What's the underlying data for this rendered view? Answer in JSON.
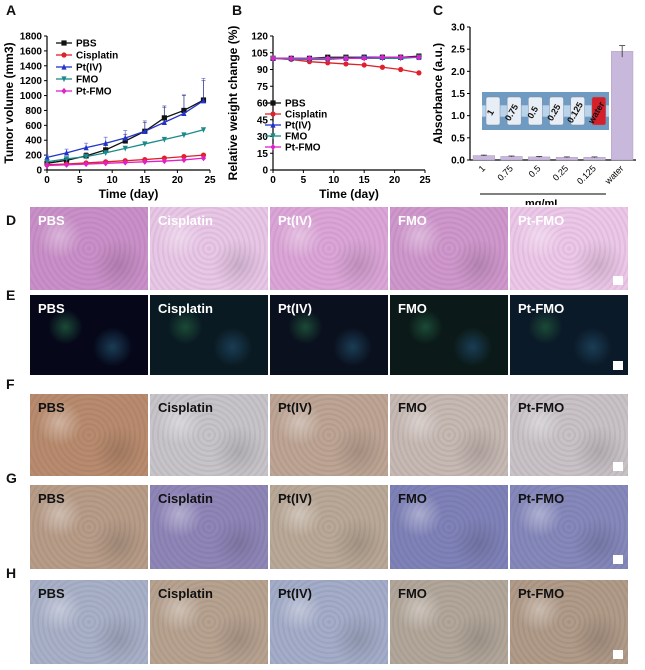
{
  "panels": [
    "A",
    "B",
    "C",
    "D",
    "E",
    "F",
    "G",
    "H"
  ],
  "groups": [
    "PBS",
    "Cisplatin",
    "Pt(IV)",
    "FMO",
    "Pt-FMO"
  ],
  "colors": {
    "PBS": "#111111",
    "Cisplatin": "#e0202a",
    "Pt(IV)": "#2233cc",
    "FMO": "#1b8a8a",
    "Pt-FMO": "#e020c8",
    "bar": "#c8b8dc"
  },
  "chart_data": [
    {
      "type": "line",
      "panel": "A",
      "xlabel": "Time (day)",
      "ylabel": "Tumor volume (mm3)",
      "xlim": [
        0,
        25
      ],
      "ylim": [
        0,
        1800
      ],
      "xticks": [
        0,
        5,
        10,
        15,
        20,
        25
      ],
      "yticks": [
        0,
        200,
        400,
        600,
        800,
        1000,
        1200,
        1400,
        1600,
        1800
      ],
      "x": [
        0,
        3,
        6,
        9,
        12,
        15,
        18,
        21,
        24
      ],
      "series": [
        {
          "name": "PBS",
          "values": [
            90,
            130,
            190,
            270,
            390,
            520,
            700,
            800,
            940
          ]
        },
        {
          "name": "Cisplatin",
          "values": [
            70,
            80,
            95,
            110,
            125,
            140,
            160,
            180,
            200
          ]
        },
        {
          "name": "Pt(IV)",
          "values": [
            170,
            230,
            300,
            360,
            430,
            520,
            640,
            760,
            930
          ]
        },
        {
          "name": "FMO",
          "values": [
            110,
            150,
            180,
            230,
            290,
            350,
            410,
            470,
            540
          ]
        },
        {
          "name": "Pt-FMO",
          "values": [
            60,
            70,
            80,
            90,
            100,
            110,
            120,
            135,
            160
          ]
        }
      ],
      "errors": [
        {
          "name": "PBS",
          "values": [
            20,
            30,
            40,
            60,
            90,
            120,
            160,
            200,
            260
          ]
        },
        {
          "name": "Pt(IV)",
          "values": [
            30,
            50,
            60,
            80,
            100,
            140,
            200,
            250,
            300
          ]
        }
      ]
    },
    {
      "type": "line",
      "panel": "B",
      "xlabel": "Time (day)",
      "ylabel": "Relative weight change (%)",
      "xlim": [
        0,
        25
      ],
      "ylim": [
        0,
        120
      ],
      "xticks": [
        0,
        5,
        10,
        15,
        20,
        25
      ],
      "yticks": [
        0,
        15,
        30,
        45,
        60,
        75,
        90,
        105,
        120
      ],
      "x": [
        0,
        3,
        6,
        9,
        12,
        15,
        18,
        21,
        24
      ],
      "series": [
        {
          "name": "PBS",
          "values": [
            100,
            100,
            100,
            101,
            101,
            101,
            101,
            101,
            102
          ]
        },
        {
          "name": "Cisplatin",
          "values": [
            100,
            99,
            97,
            96,
            95,
            94,
            92,
            90,
            87
          ]
        },
        {
          "name": "Pt(IV)",
          "values": [
            100,
            100,
            100,
            100,
            100,
            101,
            101,
            101,
            101
          ]
        },
        {
          "name": "FMO",
          "values": [
            100,
            99,
            99,
            99,
            100,
            100,
            100,
            100,
            101
          ]
        },
        {
          "name": "Pt-FMO",
          "values": [
            100,
            100,
            100,
            100,
            100,
            100,
            101,
            101,
            101
          ]
        }
      ]
    },
    {
      "type": "bar",
      "panel": "C",
      "xlabel": "mg/mL",
      "ylabel": "Absorbance (a.u.)",
      "ylim": [
        0,
        3.0
      ],
      "yticks": [
        "0.0",
        "0.5",
        "1.0",
        "1.5",
        "2.0",
        "2.5",
        "3.0"
      ],
      "categories": [
        "1",
        "0.75",
        "0.5",
        "0.25",
        "0.125",
        "water"
      ],
      "values": [
        0.1,
        0.08,
        0.07,
        0.06,
        0.06,
        2.45
      ],
      "errors": [
        0.01,
        0.01,
        0.01,
        0.01,
        0.01,
        0.13
      ],
      "inset_labels": [
        "1",
        "0.75",
        "0.5",
        "0.25",
        "0.125",
        "water"
      ]
    }
  ],
  "image_rows": [
    {
      "panel": "D",
      "palette": [
        "#c98fc8",
        "#e8c6e6",
        "#dba5d7",
        "#cf97cc",
        "#ecc7e8"
      ],
      "label_color": "#ffffff"
    },
    {
      "panel": "E",
      "palette": [
        "#06081a",
        "#0a1a22",
        "#0a101e",
        "#0b1a18",
        "#0b1a28"
      ],
      "label_color": "#ffffff"
    },
    {
      "panel": "F",
      "palette": [
        "#b88b6e",
        "#c7c4c9",
        "#bda494",
        "#c6b8b3",
        "#c8c2c7"
      ],
      "label_color": "#111111"
    },
    {
      "panel": "G",
      "palette": [
        "#b79c88",
        "#8f86b8",
        "#b9a897",
        "#7f82b8",
        "#8588bb"
      ],
      "label_color": "#111111"
    },
    {
      "panel": "H",
      "palette": [
        "#a8b0c8",
        "#b7a290",
        "#a3acc8",
        "#b2a69a",
        "#b09a88"
      ],
      "label_color": "#111111"
    }
  ]
}
